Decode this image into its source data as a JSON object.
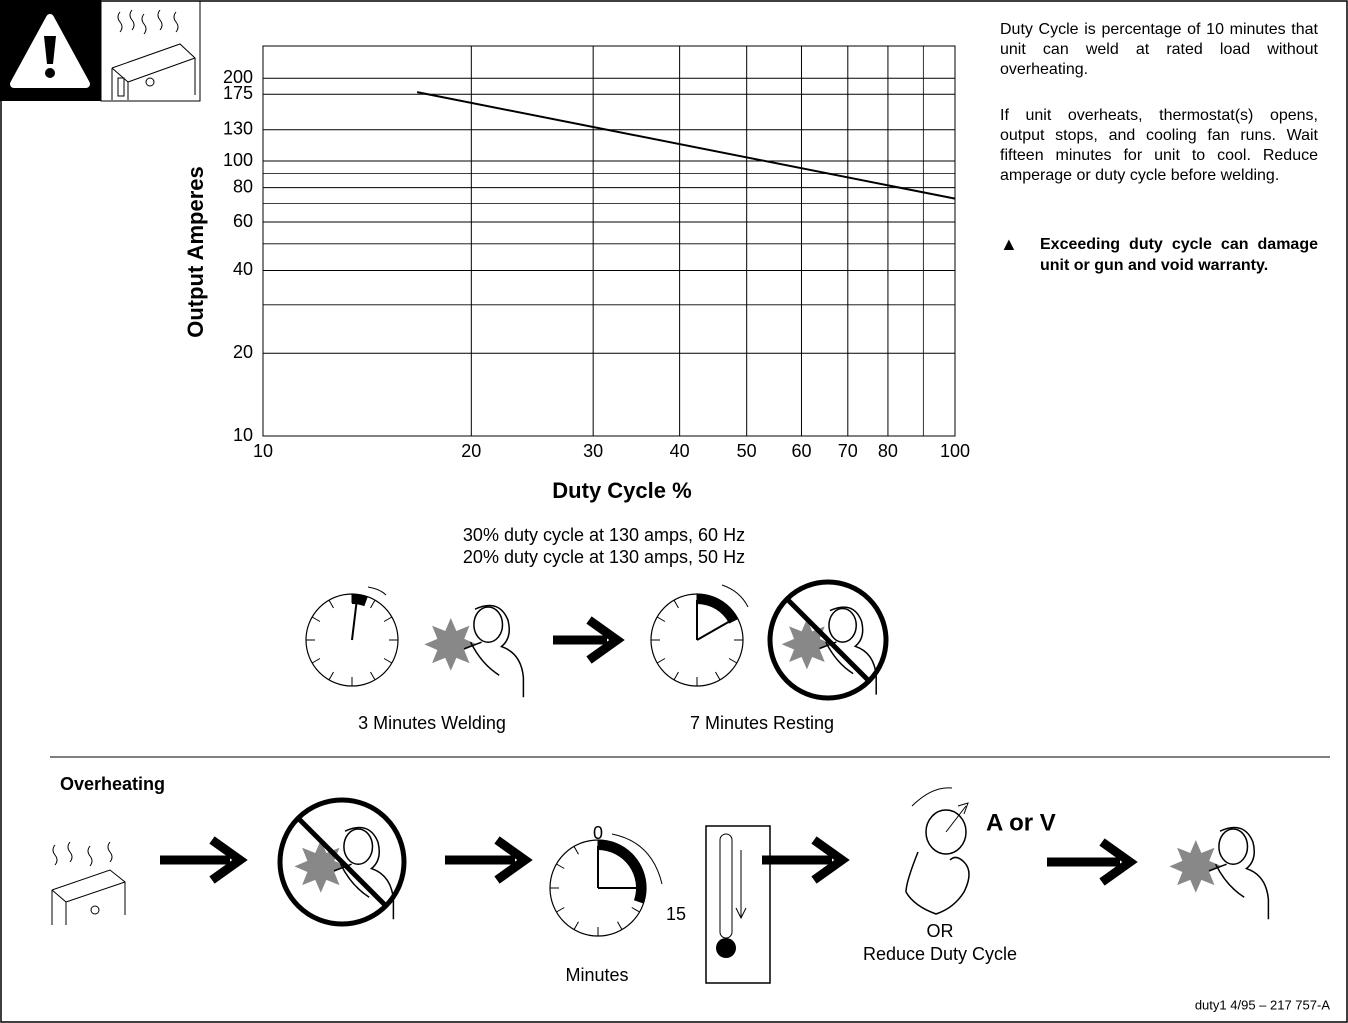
{
  "chart_data": {
    "type": "line",
    "x_label": "Duty Cycle %",
    "y_label": "Output Amperes",
    "xlim": [
      10,
      100
    ],
    "ylim": [
      10,
      262
    ],
    "log_x": true,
    "log_y": true,
    "grid": true,
    "xticks": [
      10,
      20,
      30,
      40,
      50,
      60,
      70,
      80,
      100
    ],
    "x_minor": [
      90
    ],
    "yticks": [
      10,
      20,
      40,
      60,
      80,
      100,
      130,
      175,
      200
    ],
    "y_minor": [
      30,
      50,
      70,
      90
    ],
    "series": [
      {
        "x": [
          16.7,
          100
        ],
        "values": [
          178,
          73
        ],
        "color": "#000000"
      }
    ]
  },
  "side_text": {
    "paragraphs": [
      "Duty Cycle is percentage of 10 minutes that unit can weld at rated load without overheating.",
      "If unit overheats, thermostat(s) opens, output stops, and cooling fan runs. Wait fifteen minutes for unit to cool. Reduce amperage or duty cycle before welding."
    ],
    "warning": "Exceeding duty cycle can damage unit or gun and void warranty."
  },
  "duty_notes": [
    "30% duty cycle at 130 amps, 60 Hz",
    "20% duty cycle at 130 amps, 50 Hz"
  ],
  "duty_steps": [
    "3 Minutes Welding",
    "7 Minutes Resting"
  ],
  "overheating": {
    "title": "Overheating",
    "clock_start": "0",
    "clock_end": "15",
    "clock_label": "Minutes",
    "knob_label": "A or V",
    "or": "OR",
    "reduce": "Reduce Duty Cycle"
  },
  "footer": "duty1 4/95 – 217 757-A"
}
